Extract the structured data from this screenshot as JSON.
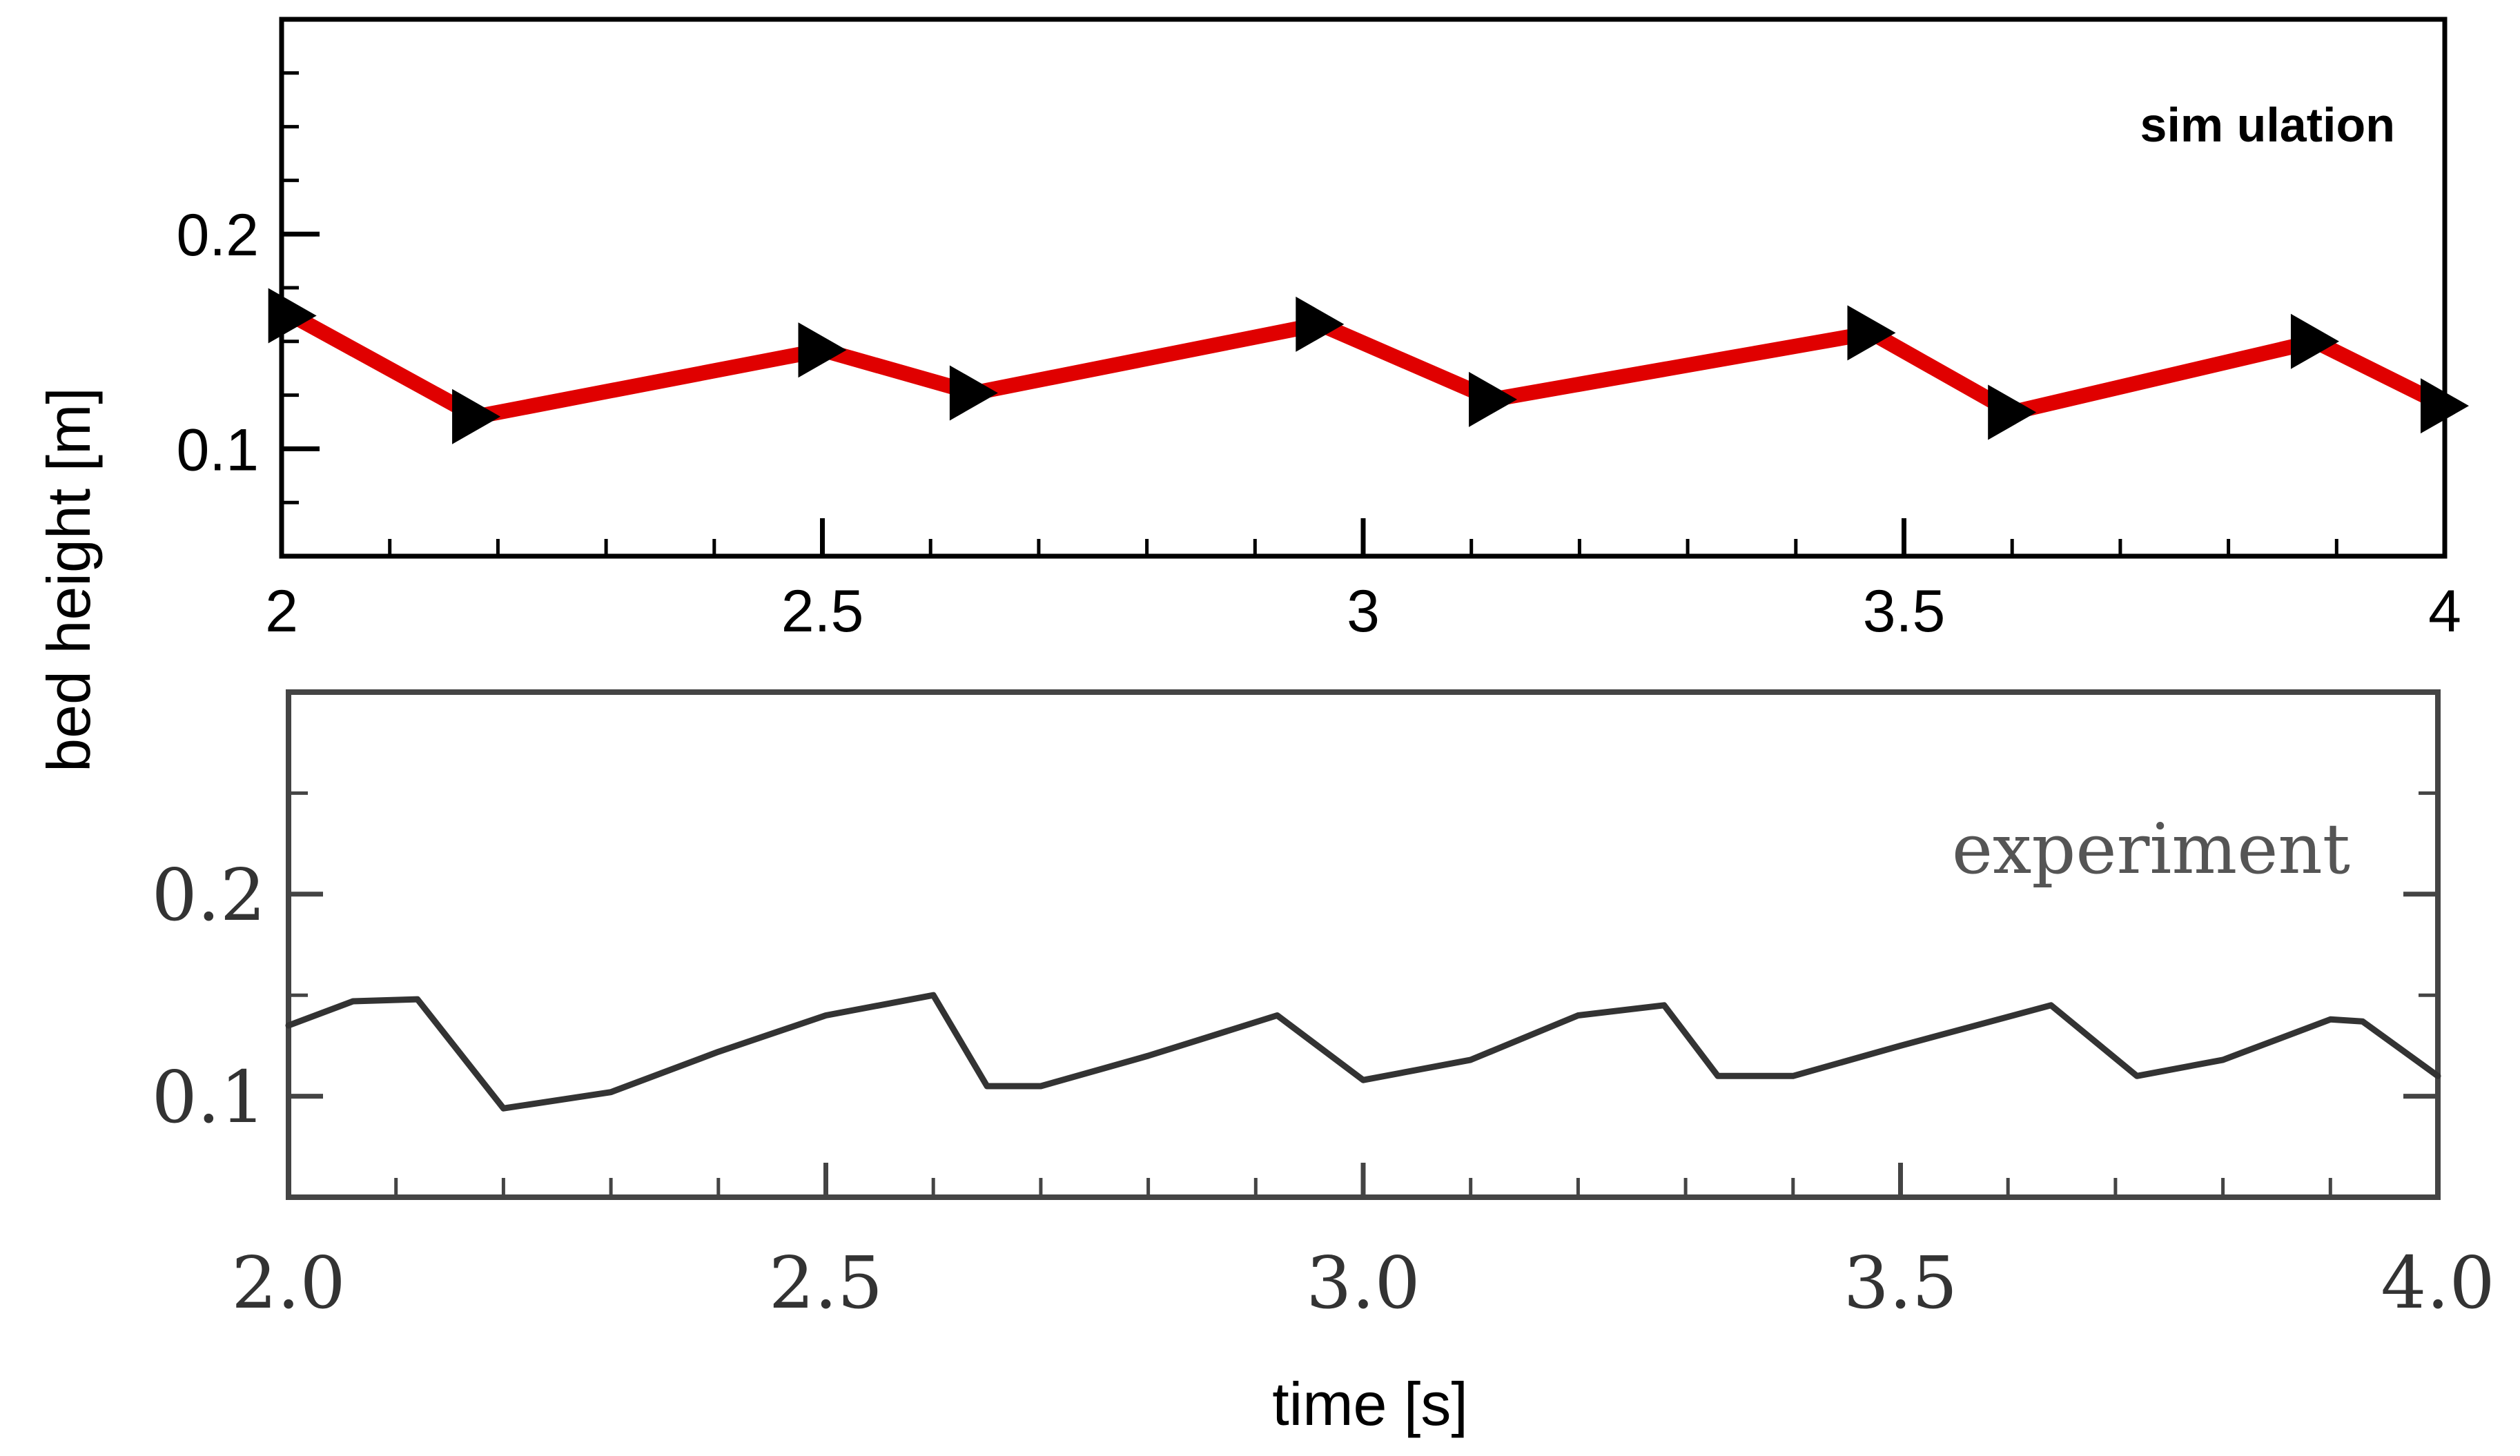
{
  "figure": {
    "ylabel": "bed height [m]",
    "xlabel": "time [s]"
  },
  "chart_data": [
    {
      "type": "line",
      "label": "sim ulation",
      "xlim": [
        2,
        4
      ],
      "ylim": [
        0.05,
        0.3
      ],
      "x_ticks": [
        2,
        2.5,
        3,
        3.5,
        4
      ],
      "x_tick_labels": [
        "2",
        "2.5",
        "3",
        "3.5",
        "4"
      ],
      "y_ticks": [
        0.1,
        0.2
      ],
      "y_tick_labels": [
        "0.1",
        "0.2"
      ],
      "series": [
        {
          "color": "#e00000",
          "marker": "right-triangle",
          "marker_color": "#000000",
          "x": [
            2.01,
            2.18,
            2.5,
            2.64,
            2.96,
            3.12,
            3.47,
            3.6,
            3.88,
            4.0
          ],
          "y": [
            0.162,
            0.115,
            0.146,
            0.126,
            0.158,
            0.123,
            0.154,
            0.117,
            0.15,
            0.12
          ]
        }
      ]
    },
    {
      "type": "line",
      "label": "experiment",
      "xlim": [
        2,
        4
      ],
      "ylim": [
        0.05,
        0.3
      ],
      "x_ticks": [
        2,
        2.5,
        3,
        3.5,
        4
      ],
      "x_tick_labels": [
        "2.0",
        "2.5",
        "3.0",
        "3.5",
        "4.0"
      ],
      "y_ticks": [
        0.1,
        0.2
      ],
      "y_tick_labels": [
        "0.1",
        "0.2"
      ],
      "series": [
        {
          "color": "#333333",
          "x": [
            2.0,
            2.06,
            2.12,
            2.2,
            2.3,
            2.4,
            2.5,
            2.6,
            2.65,
            2.7,
            2.8,
            2.92,
            3.0,
            3.1,
            3.2,
            3.28,
            3.33,
            3.4,
            3.5,
            3.64,
            3.72,
            3.8,
            3.9,
            3.93,
            4.0
          ],
          "y": [
            0.135,
            0.147,
            0.148,
            0.094,
            0.102,
            0.122,
            0.14,
            0.15,
            0.105,
            0.105,
            0.12,
            0.14,
            0.108,
            0.118,
            0.14,
            0.145,
            0.11,
            0.11,
            0.125,
            0.145,
            0.11,
            0.118,
            0.138,
            0.137,
            0.11
          ]
        }
      ]
    }
  ]
}
